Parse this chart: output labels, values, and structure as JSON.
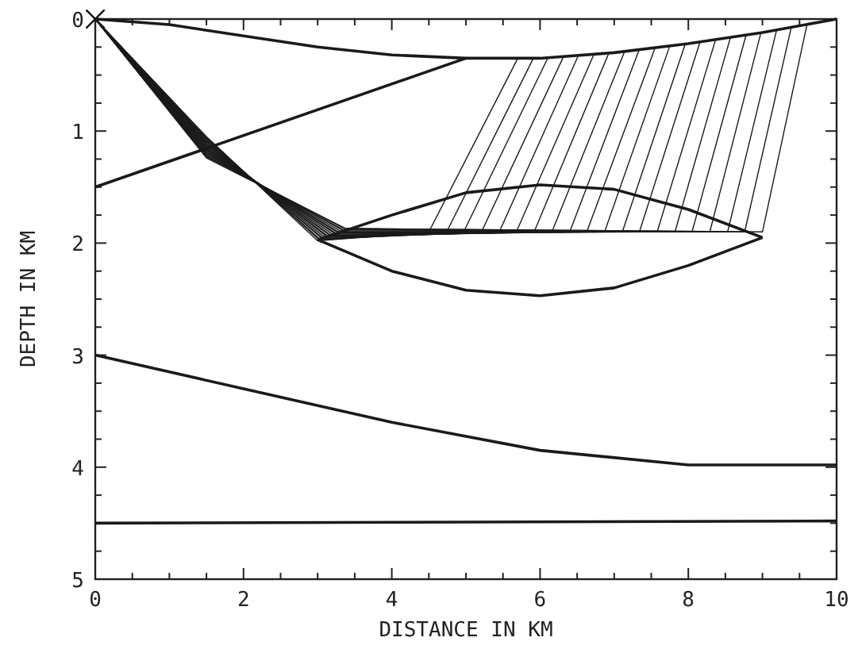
{
  "chart_data": {
    "type": "line",
    "xlabel": "DISTANCE IN KM",
    "ylabel": "DEPTH IN KM",
    "xlim": [
      0,
      10
    ],
    "ylim": [
      5,
      0
    ],
    "xticks": [
      0,
      {
        "value": 0.5,
        "label": null
      },
      {
        "value": 1,
        "label": null
      },
      {
        "value": 1.5,
        "label": null
      },
      2,
      {
        "value": 2.5,
        "label": null
      },
      {
        "value": 3,
        "label": null
      },
      {
        "value": 3.5,
        "label": null
      },
      4,
      {
        "value": 4.5,
        "label": null
      },
      {
        "value": 5,
        "label": null
      },
      {
        "value": 5.5,
        "label": null
      },
      6,
      {
        "value": 6.5,
        "label": null
      },
      {
        "value": 7,
        "label": null
      },
      {
        "value": 7.5,
        "label": null
      },
      8,
      {
        "value": 8.5,
        "label": null
      },
      {
        "value": 9,
        "label": null
      },
      {
        "value": 9.5,
        "label": null
      },
      10
    ],
    "yticks": [
      0,
      {
        "value": 0.25,
        "label": null
      },
      {
        "value": 0.5,
        "label": null
      },
      {
        "value": 0.75,
        "label": null
      },
      1,
      {
        "value": 1.25,
        "label": null
      },
      {
        "value": 1.5,
        "label": null
      },
      {
        "value": 1.75,
        "label": null
      },
      2,
      {
        "value": 2.25,
        "label": null
      },
      {
        "value": 2.5,
        "label": null
      },
      {
        "value": 2.75,
        "label": null
      },
      3,
      {
        "value": 3.25,
        "label": null
      },
      {
        "value": 3.5,
        "label": null
      },
      {
        "value": 3.75,
        "label": null
      },
      4,
      {
        "value": 4.25,
        "label": null
      },
      {
        "value": 4.5,
        "label": null
      },
      {
        "value": 4.75,
        "label": null
      },
      5
    ],
    "grid": false,
    "line_style": "solid",
    "marker": "none",
    "series": [
      {
        "color": "#1a1a1a",
        "x": [
          0,
          1,
          2,
          3,
          4,
          5,
          6,
          7,
          8,
          9,
          10
        ],
        "values": [
          0,
          0.05,
          0.15,
          0.25,
          0.32,
          0.35,
          0.35,
          0.3,
          0.22,
          0.12,
          0
        ]
      },
      {
        "color": "#1a1a1a",
        "x": [
          0,
          5
        ],
        "values": [
          1.5,
          0.35
        ]
      },
      {
        "color": "#1a1a1a",
        "x": [
          3,
          4,
          5,
          6,
          7,
          8,
          9
        ],
        "values": [
          1.97,
          1.75,
          1.55,
          1.48,
          1.52,
          1.7,
          1.95
        ]
      },
      {
        "color": "#1a1a1a",
        "x": [
          3,
          4,
          5,
          6,
          7,
          8,
          9
        ],
        "values": [
          1.97,
          2.25,
          2.42,
          2.47,
          2.4,
          2.2,
          1.95
        ]
      },
      {
        "color": "#1a1a1a",
        "x": [
          0,
          2,
          4,
          6,
          8,
          10
        ],
        "values": [
          3,
          3.3,
          3.6,
          3.85,
          3.98,
          3.98
        ]
      },
      {
        "color": "#1a1a1a",
        "x": [
          0,
          10
        ],
        "values": [
          4.5,
          4.48
        ]
      },
      {
        "color": "#1a1a1a",
        "x": [
          0,
          1.5,
          3,
          4.5,
          5.7
        ],
        "values": [
          0,
          1.05,
          1.98,
          1.9,
          0.35
        ]
      },
      {
        "color": "#1a1a1a",
        "x": [
          0,
          1.5,
          3.02,
          4.74,
          5.91
        ],
        "values": [
          0,
          1.06,
          1.97,
          1.9,
          0.35
        ]
      },
      {
        "color": "#1a1a1a",
        "x": [
          0,
          1.5,
          3.04,
          4.97,
          6.11
        ],
        "values": [
          0,
          1.07,
          1.97,
          1.9,
          0.34
        ]
      },
      {
        "color": "#1a1a1a",
        "x": [
          0,
          1.5,
          3.06,
          5.21,
          6.32
        ],
        "values": [
          0,
          1.08,
          1.96,
          1.9,
          0.33
        ]
      },
      {
        "color": "#1a1a1a",
        "x": [
          0,
          1.5,
          3.08,
          5.45,
          6.52
        ],
        "values": [
          0,
          1.09,
          1.96,
          1.9,
          0.32
        ]
      },
      {
        "color": "#1a1a1a",
        "x": [
          0,
          1.5,
          3.1,
          5.68,
          6.73
        ],
        "values": [
          0,
          1.1,
          1.95,
          1.9,
          0.31
        ]
      },
      {
        "color": "#1a1a1a",
        "x": [
          0,
          1.5,
          3.12,
          5.92,
          6.93
        ],
        "values": [
          0,
          1.11,
          1.94,
          1.9,
          0.3
        ]
      },
      {
        "color": "#1a1a1a",
        "x": [
          0,
          1.5,
          3.14,
          6.16,
          7.14
        ],
        "values": [
          0,
          1.12,
          1.94,
          1.9,
          0.29
        ]
      },
      {
        "color": "#1a1a1a",
        "x": [
          0,
          1.5,
          3.16,
          6.4,
          7.34
        ],
        "values": [
          0,
          1.13,
          1.93,
          1.9,
          0.27
        ]
      },
      {
        "color": "#1a1a1a",
        "x": [
          0,
          1.5,
          3.18,
          6.63,
          7.55
        ],
        "values": [
          0,
          1.14,
          1.93,
          1.9,
          0.26
        ]
      },
      {
        "color": "#1a1a1a",
        "x": [
          0,
          1.5,
          3.2,
          6.87,
          7.75
        ],
        "values": [
          0,
          1.15,
          1.92,
          1.9,
          0.24
        ]
      },
      {
        "color": "#1a1a1a",
        "x": [
          0,
          1.5,
          3.22,
          7.11,
          7.96
        ],
        "values": [
          0,
          1.16,
          1.91,
          1.9,
          0.22
        ]
      },
      {
        "color": "#1a1a1a",
        "x": [
          0,
          1.5,
          3.24,
          7.34,
          8.16
        ],
        "values": [
          0,
          1.17,
          1.91,
          1.9,
          0.2
        ]
      },
      {
        "color": "#1a1a1a",
        "x": [
          0,
          1.5,
          3.26,
          7.58,
          8.37
        ],
        "values": [
          0,
          1.18,
          1.9,
          1.9,
          0.18
        ]
      },
      {
        "color": "#1a1a1a",
        "x": [
          0,
          1.5,
          3.28,
          7.82,
          8.57
        ],
        "values": [
          0,
          1.19,
          1.9,
          1.9,
          0.16
        ]
      },
      {
        "color": "#1a1a1a",
        "x": [
          0,
          1.5,
          3.3,
          8.05,
          8.78
        ],
        "values": [
          0,
          1.2,
          1.89,
          1.9,
          0.14
        ]
      },
      {
        "color": "#1a1a1a",
        "x": [
          0,
          1.5,
          3.32,
          8.29,
          8.98
        ],
        "values": [
          0,
          1.21,
          1.88,
          1.9,
          0.12
        ]
      },
      {
        "color": "#1a1a1a",
        "x": [
          0,
          1.5,
          3.34,
          8.53,
          9.19
        ],
        "values": [
          0,
          1.22,
          1.88,
          1.9,
          0.1
        ]
      },
      {
        "color": "#1a1a1a",
        "x": [
          0,
          1.5,
          3.36,
          8.76,
          9.39
        ],
        "values": [
          0,
          1.23,
          1.87,
          1.9,
          0.07
        ]
      },
      {
        "color": "#1a1a1a",
        "x": [
          0,
          1.5,
          3.38,
          9,
          9.6
        ],
        "values": [
          0,
          1.24,
          1.87,
          1.9,
          0.05
        ]
      },
      {
        "type": "scatter",
        "marker": "cross",
        "color": "#1a1a1a",
        "x": [
          0
        ],
        "values": [
          0
        ]
      }
    ]
  }
}
